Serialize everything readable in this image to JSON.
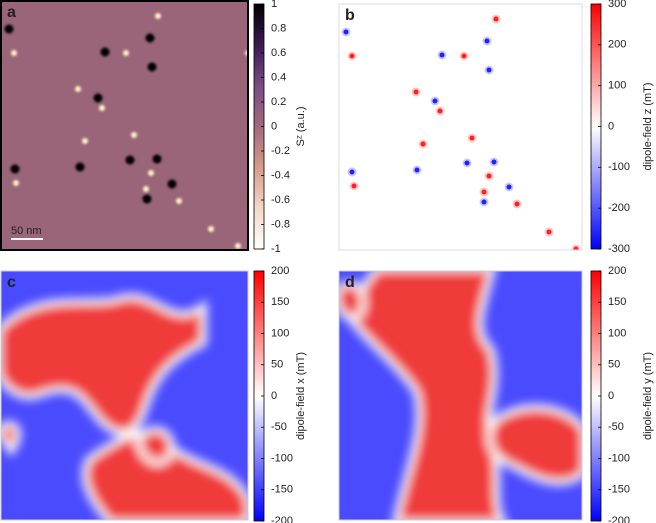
{
  "chart_data": [
    {
      "type": "heatmap",
      "panel_label": "a",
      "colorbar_label": "Sᶻ (a.u.)",
      "scale_bar": "50 nm",
      "clim": [
        -1,
        1
      ],
      "cticks": [
        1,
        0.8,
        0.6,
        0.4,
        0.2,
        0,
        -0.2,
        -0.4,
        -0.6,
        -0.8,
        -1
      ],
      "colormap": [
        "#000000",
        "#3a1a52",
        "#7a4c84",
        "#a06a7e",
        "#d89a8a",
        "#f4d8c8",
        "#ffffff"
      ]
    },
    {
      "type": "heatmap",
      "panel_label": "b",
      "colorbar_label": "dipole-field z (mT)",
      "clim": [
        -300,
        300
      ],
      "cticks": [
        300,
        200,
        100,
        0,
        -100,
        -200,
        -300
      ],
      "colormap": [
        "#ff0000",
        "#ffffff",
        "#0000ff"
      ]
    },
    {
      "type": "heatmap",
      "panel_label": "c",
      "colorbar_label": "dipole-field x (mT)",
      "clim": [
        -200,
        200
      ],
      "cticks": [
        200,
        150,
        100,
        50,
        0,
        -50,
        -100,
        -150,
        -200
      ],
      "colormap": [
        "#ff0000",
        "#ffffff",
        "#0000ff"
      ]
    },
    {
      "type": "heatmap",
      "panel_label": "d",
      "colorbar_label": "dipole-field y (mT)",
      "clim": [
        -200,
        200
      ],
      "cticks": [
        200,
        150,
        100,
        50,
        0,
        -50,
        -100,
        -150,
        -200
      ],
      "colormap": [
        "#ff0000",
        "#ffffff",
        "#0000ff"
      ]
    }
  ]
}
